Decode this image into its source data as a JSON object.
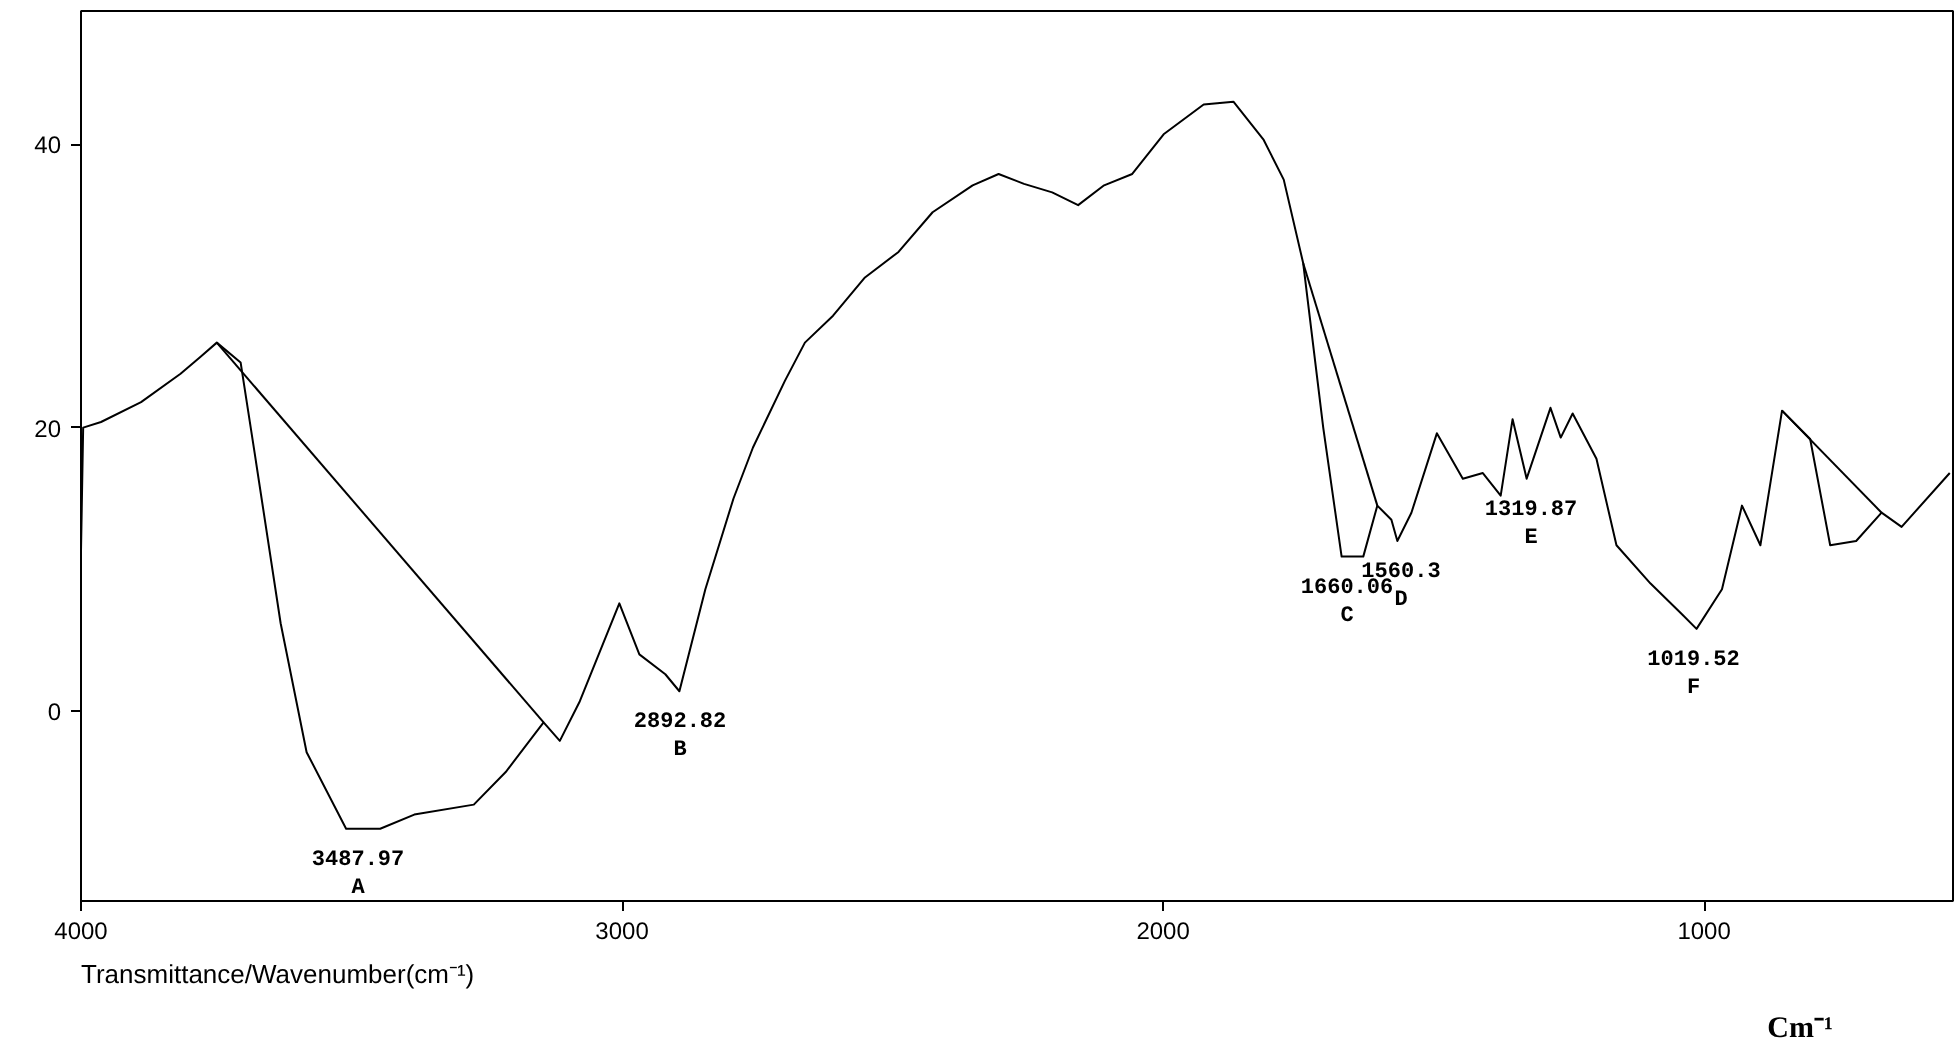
{
  "chart_data": {
    "type": "line",
    "xlabel": "Transmittance/Wavenumber(cm⁻¹)",
    "xlim": [
      4000,
      540
    ],
    "ylim": [
      -13.4,
      49.4
    ],
    "xticks": [
      4000,
      3000,
      2000,
      1000
    ],
    "yticks": [
      0,
      20,
      40
    ],
    "grid": false,
    "marker": "none",
    "line_style": "solid",
    "series": [
      {
        "color": "#000000",
        "x": [
          4000,
          3996,
          3963,
          3889,
          3816,
          3779,
          3749,
          3705,
          3679,
          3631,
          3583,
          3510,
          3447,
          3384,
          3274,
          3215,
          3145,
          3115,
          3078,
          3005,
          2968,
          2920,
          2894,
          2846,
          2794,
          2758,
          2699,
          2662,
          2610,
          2551,
          2489,
          2426,
          2352,
          2304,
          2257,
          2205,
          2157,
          2109,
          2057,
          1999,
          1925,
          1870,
          1814,
          1777,
          1741,
          1704,
          1670,
          1630,
          1604,
          1578,
          1567,
          1541,
          1494,
          1446,
          1409,
          1376,
          1354,
          1328,
          1284,
          1265,
          1243,
          1199,
          1162,
          1099,
          1040,
          1014,
          967,
          930,
          896,
          856,
          804,
          767,
          719,
          672,
          635,
          546
        ],
        "values": [
          11.3,
          20,
          20.4,
          21.8,
          23.8,
          25,
          26,
          24.6,
          18.2,
          6.2,
          -2.9,
          -8.3,
          -8.3,
          -7.3,
          -6.6,
          -4.3,
          -0.8,
          -2.1,
          0.7,
          7.6,
          4,
          2.6,
          1.4,
          8.6,
          15,
          18.6,
          23.3,
          26,
          27.9,
          30.6,
          32.4,
          35.2,
          37.1,
          37.9,
          37.2,
          36.6,
          35.7,
          37.1,
          37.9,
          40.7,
          42.8,
          43,
          40.3,
          37.5,
          31.6,
          20,
          10.9,
          10.9,
          14.5,
          13.5,
          12,
          14,
          19.6,
          16.4,
          16.8,
          15.2,
          20.6,
          16.4,
          21.4,
          19.3,
          21,
          17.8,
          11.7,
          9,
          6.8,
          5.8,
          8.6,
          14.5,
          11.7,
          21.2,
          19.2,
          11.7,
          12,
          14,
          13,
          16.8
        ]
      },
      {
        "color": "#000000",
        "x": [
          3749,
          3145
        ],
        "values": [
          26,
          -0.8
        ]
      },
      {
        "color": "#000000",
        "x": [
          1741,
          1604
        ],
        "values": [
          31.6,
          14.5
        ]
      },
      {
        "color": "#000000",
        "x": [
          856,
          672
        ],
        "values": [
          21.2,
          14
        ]
      }
    ],
    "annotations": [
      {
        "text": "3487.97",
        "x": 3487.97,
        "y": -8.3
      },
      {
        "text": "A",
        "x": 3487.97,
        "y": -8.3
      },
      {
        "text": "2892.82",
        "x": 2892.82,
        "y": 1.4
      },
      {
        "text": "B",
        "x": 2892.82,
        "y": 1.4
      },
      {
        "text": "1660.06",
        "x": 1660.06,
        "y": 10.9
      },
      {
        "text": "C",
        "x": 1660.06,
        "y": 10.9
      },
      {
        "text": "1560.3",
        "x": 1560.3,
        "y": 12
      },
      {
        "text": "D",
        "x": 1560.3,
        "y": 12
      },
      {
        "text": "1319.87",
        "x": 1319.87,
        "y": 16.4
      },
      {
        "text": "E",
        "x": 1319.87,
        "y": 16.4
      },
      {
        "text": "1019.52",
        "x": 1019.52,
        "y": 5.8
      },
      {
        "text": "F",
        "x": 1019.52,
        "y": 5.8
      },
      "Cm⁻¹"
    ]
  }
}
